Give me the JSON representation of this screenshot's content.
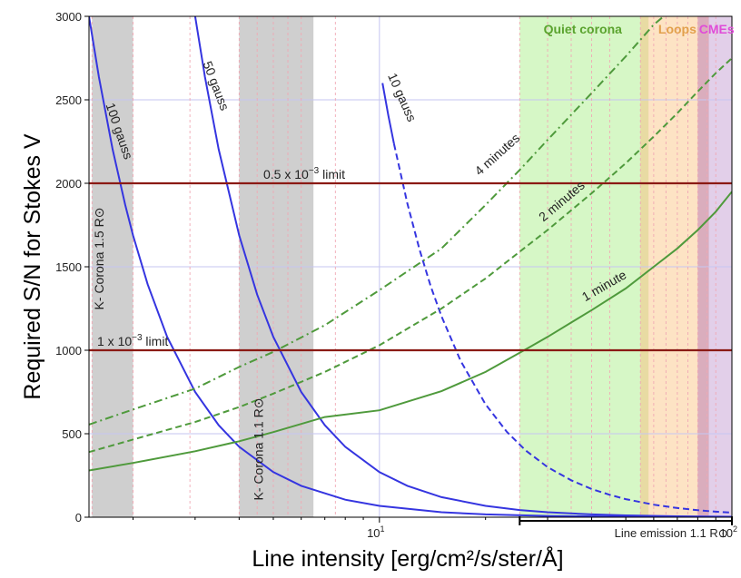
{
  "chart_data": {
    "type": "line",
    "xlabel": "Line intensity [erg/cm²/s/ster/Å]",
    "ylabel": "Required S/N for Stokes V",
    "x_scale": "log",
    "xlim": [
      1.5,
      100
    ],
    "ylim": [
      0,
      3000
    ],
    "x_tick_labels": [
      {
        "value": 10,
        "base": "10",
        "exp": "1"
      },
      {
        "value": 100,
        "base": "10",
        "exp": "2"
      }
    ],
    "y_ticks": [
      0,
      500,
      1000,
      1500,
      2000,
      2500,
      3000
    ],
    "grid": true,
    "colors": {
      "field_curves": "#3535e0",
      "time_curves": "#4f9a3c",
      "limit_lines": "#8b1a14",
      "k_corona_band": "#cfcfcf",
      "quiet_corona_band": "#d6f7c6",
      "loops_band": "#fde3c4",
      "cmes_band": "#e2cfe9",
      "quiet_corona_label": "#5aa32e",
      "loops_label": "#e2a04c",
      "cmes_label": "#e04cd8"
    },
    "series": [
      {
        "name": "100 gauss",
        "color": "#3535e0",
        "style": "solid",
        "x": [
          1.5,
          1.6,
          1.75,
          1.9,
          2.0,
          2.2,
          2.5,
          3.0,
          3.5,
          4.0,
          5.0,
          6.0,
          8.0,
          10,
          15,
          20,
          30,
          50,
          70,
          100
        ],
        "y": [
          3000,
          2637,
          2204,
          1870,
          1688,
          1395,
          1080,
          750,
          551,
          422,
          270,
          188,
          105,
          68,
          30,
          17,
          7.5,
          2.7,
          1.4,
          0.7
        ]
      },
      {
        "name": "50 gauss",
        "color": "#3535e0",
        "style": "solid",
        "x": [
          3.0,
          3.2,
          3.5,
          4.0,
          4.5,
          5.0,
          6.0,
          7.0,
          8.0,
          10,
          12,
          15,
          20,
          25,
          30,
          40,
          50,
          70,
          100
        ],
        "y": [
          3000,
          2637,
          2204,
          1688,
          1333,
          1080,
          750,
          551,
          422,
          270,
          188,
          120,
          68,
          43,
          30,
          17,
          11,
          5.5,
          2.7
        ]
      },
      {
        "name": "10 gauss",
        "color": "#3535e0",
        "style": "solid",
        "x": [
          10.2,
          10.6,
          11.0
        ],
        "y": [
          2600,
          2407,
          2236
        ]
      },
      {
        "name": "10 gauss",
        "color": "#3535e0",
        "style": "dashed",
        "x": [
          11.0,
          12,
          13,
          14,
          15,
          17,
          20,
          23,
          26,
          30,
          35,
          40,
          45,
          50,
          60,
          70,
          80,
          90,
          100
        ],
        "y": [
          2236,
          1879,
          1601,
          1380,
          1203,
          936,
          676,
          511,
          400,
          300,
          221,
          169,
          134,
          108,
          75,
          55,
          42,
          33,
          27
        ]
      },
      {
        "name": "1 minute",
        "color": "#4f9a3c",
        "style": "solid",
        "x": [
          1.5,
          2,
          3,
          4,
          5,
          7,
          10,
          15,
          20,
          25,
          30,
          40,
          50,
          60,
          70,
          80,
          90,
          100
        ],
        "y": [
          280,
          325,
          395,
          455,
          510,
          600,
          640,
          755,
          870,
          985,
          1080,
          1240,
          1370,
          1500,
          1610,
          1720,
          1830,
          1950
        ]
      },
      {
        "name": "2 minutes",
        "color": "#4f9a3c",
        "style": "dashed",
        "x": [
          1.5,
          2,
          3,
          4,
          5,
          7,
          10,
          15,
          20,
          25,
          30,
          40,
          50,
          60,
          70,
          80,
          90,
          100
        ],
        "y": [
          390,
          465,
          570,
          660,
          740,
          870,
          1030,
          1250,
          1430,
          1590,
          1720,
          1940,
          2120,
          2280,
          2420,
          2550,
          2660,
          2750
        ]
      },
      {
        "name": "4 minutes",
        "color": "#4f9a3c",
        "style": "dashdot",
        "x": [
          1.5,
          2,
          3,
          4,
          5,
          7,
          10,
          15,
          20,
          25,
          30,
          40,
          50,
          60,
          64
        ],
        "y": [
          555,
          645,
          770,
          900,
          990,
          1150,
          1360,
          1610,
          1870,
          2080,
          2260,
          2540,
          2760,
          2950,
          3000
        ]
      }
    ],
    "hlines": [
      {
        "y": 2000,
        "label_base": "0.5 x 10",
        "label_exp": "−3",
        "label_suffix": " limit"
      },
      {
        "y": 1000,
        "label_base": "1 x 10",
        "label_exp": "−3",
        "label_suffix": " limit"
      }
    ],
    "bands": [
      {
        "name": "K- Corona 1.5 R⊙",
        "x": [
          1.53,
          2.0
        ],
        "kind": "k_corona"
      },
      {
        "name": "K- Corona 1.1 R⊙",
        "x": [
          4.0,
          6.5
        ],
        "kind": "k_corona"
      },
      {
        "name": "Quiet corona",
        "x": [
          25,
          57
        ],
        "kind": "quiet"
      },
      {
        "name": "Loops",
        "x": [
          55,
          85
        ],
        "kind": "loops"
      },
      {
        "name": "CMEs",
        "x": [
          80,
          100
        ],
        "kind": "cmes"
      }
    ],
    "band_overlays": [
      {
        "x": [
          55,
          58
        ],
        "color": "#e6d9a0"
      },
      {
        "x": [
          80,
          86
        ],
        "color": "#d9a8b8"
      }
    ],
    "minor_vlines_x": [
      1.53,
      2.0,
      2.9,
      4.0,
      4.5,
      5.0,
      5.5,
      6.0,
      7.5,
      25,
      30,
      35,
      40,
      45,
      55,
      60,
      65,
      70,
      75,
      80,
      85,
      90
    ],
    "annotations": {
      "line_emission": "Line emission 1.1 R⊙",
      "line_emission_range": [
        25,
        100
      ]
    }
  }
}
